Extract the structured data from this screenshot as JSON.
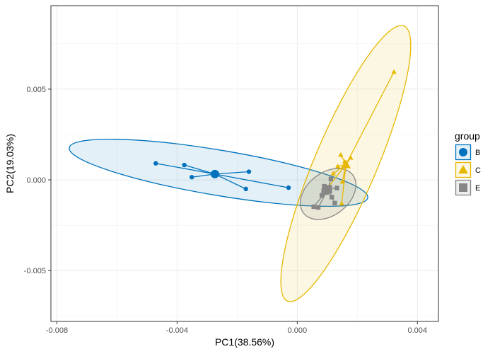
{
  "chart_data": {
    "type": "scatter",
    "title": "",
    "xlabel": "PC1(38.56%)",
    "ylabel": "PC2(19.03%)",
    "xlim": [
      -0.0082,
      0.0047
    ],
    "ylim": [
      -0.0078,
      0.0096
    ],
    "x_ticks": [
      -0.008,
      -0.004,
      0.0,
      0.004
    ],
    "x_tick_labels": [
      "-0.008",
      "-0.004",
      "0.000",
      "0.004"
    ],
    "y_ticks": [
      -0.005,
      0.0,
      0.005
    ],
    "y_tick_labels": [
      "-0.005",
      "0.000",
      "0.005"
    ],
    "grid": true,
    "legend": {
      "title": "group",
      "position": "right",
      "entries": [
        "B",
        "C",
        "E"
      ]
    },
    "series": [
      {
        "name": "B",
        "color": "#0072BD",
        "shape": "circle",
        "centroid": [
          -0.00274,
          0.00032
        ],
        "points": [
          [
            -0.00471,
            0.00091
          ],
          [
            -0.00376,
            0.00082
          ],
          [
            -0.00351,
            0.00015
          ],
          [
            -0.00161,
            0.00045
          ],
          [
            -0.00171,
            -0.0005
          ],
          [
            -0.00029,
            -0.00043
          ]
        ],
        "ellipse": {
          "cx": -0.00257,
          "cy": 0.00035,
          "rx_pc1": 0.0051,
          "ry_pc2": 0.0012,
          "tilt": "down-right"
        }
      },
      {
        "name": "C",
        "color": "#E7B800",
        "shape": "triangle",
        "centroid": [
          0.00162,
          0.00084
        ],
        "points": [
          [
            0.00322,
            0.00595
          ],
          [
            0.00145,
            0.00138
          ],
          [
            0.00178,
            0.00122
          ],
          [
            0.00158,
            0.001
          ],
          [
            0.00135,
            0.00075
          ],
          [
            0.0012,
            0.00035
          ],
          [
            0.0015,
            -0.0001
          ],
          [
            0.00148,
            -0.0013
          ],
          [
            0.00098,
            -0.0005
          ]
        ],
        "ellipse": {
          "cx": 0.00162,
          "cy": 0.00078,
          "semi_major": 0.0065,
          "semi_minor": 0.0012,
          "tilt": "up-right"
        }
      },
      {
        "name": "E",
        "color": "#868686",
        "shape": "square",
        "centroid": [
          0.00102,
          -0.00052
        ],
        "points": [
          [
            0.00112,
            5e-05
          ],
          [
            0.00132,
            -0.00045
          ],
          [
            0.0009,
            -0.00035
          ],
          [
            0.00082,
            -0.00085
          ],
          [
            0.00115,
            -0.00095
          ],
          [
            0.00055,
            -0.00148
          ],
          [
            0.0007,
            -0.00152
          ],
          [
            0.00125,
            -0.00128
          ],
          [
            0.00098,
            -0.0007
          ],
          [
            0.00088,
            -0.0006
          ]
        ],
        "ellipse": {
          "cx": 0.00102,
          "cy": -0.00088,
          "semi_major": 0.0015,
          "semi_minor": 0.0007,
          "tilt": "up-right"
        }
      }
    ]
  }
}
